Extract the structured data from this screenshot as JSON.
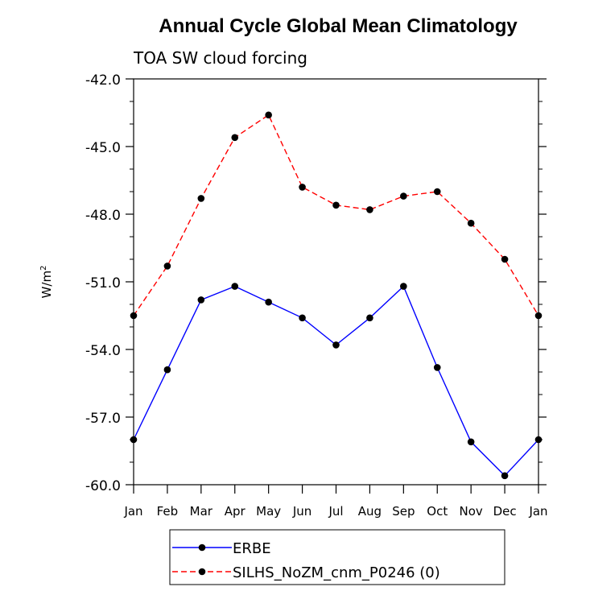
{
  "chart_data": {
    "type": "line",
    "title": "Annual Cycle Global Mean Climatology",
    "subtitle": "TOA SW cloud forcing",
    "xlabel": "",
    "ylabel": "W/m",
    "ylabel_sup": "2",
    "categories": [
      "Jan",
      "Feb",
      "Mar",
      "Apr",
      "May",
      "Jun",
      "Jul",
      "Aug",
      "Sep",
      "Oct",
      "Nov",
      "Dec",
      "Jan"
    ],
    "ylim": [
      -60.0,
      -42.0
    ],
    "yticks": [
      "-42.0",
      "-45.0",
      "-48.0",
      "-51.0",
      "-54.0",
      "-57.0",
      "-60.0"
    ],
    "ytick_values": [
      -42,
      -45,
      -48,
      -51,
      -54,
      -57,
      -60
    ],
    "series": [
      {
        "name": "ERBE",
        "color": "#0000ff",
        "dash": "solid",
        "values": [
          -58.0,
          -54.9,
          -51.8,
          -51.2,
          -51.9,
          -52.6,
          -53.8,
          -52.6,
          -51.2,
          -54.8,
          -58.1,
          -59.6,
          -58.0
        ]
      },
      {
        "name": "SILHS_NoZM_cnm_P0246 (0)",
        "color": "#ff0000",
        "dash": "dashed",
        "values": [
          -52.5,
          -50.3,
          -47.3,
          -44.6,
          -43.6,
          -46.8,
          -47.6,
          -47.8,
          -47.2,
          -47.0,
          -48.4,
          -50.0,
          -52.5
        ]
      }
    ],
    "grid": false,
    "legend_position": "bottom-center"
  }
}
